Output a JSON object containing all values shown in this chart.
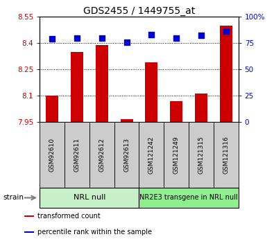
{
  "title": "GDS2455 / 1449755_at",
  "samples": [
    "GSM92610",
    "GSM92611",
    "GSM92612",
    "GSM92613",
    "GSM121242",
    "GSM121249",
    "GSM121315",
    "GSM121316"
  ],
  "transformed_count": [
    8.1,
    8.35,
    8.39,
    7.965,
    8.29,
    8.07,
    8.11,
    8.5
  ],
  "percentile_rank": [
    79,
    80,
    80,
    76,
    83,
    80,
    82,
    86
  ],
  "ylim_left": [
    7.95,
    8.55
  ],
  "ylim_right": [
    0,
    100
  ],
  "yticks_left": [
    7.95,
    8.1,
    8.25,
    8.4,
    8.55
  ],
  "yticks_right": [
    0,
    25,
    50,
    75,
    100
  ],
  "ytick_labels_left": [
    "7.95",
    "8.1",
    "8.25",
    "8.4",
    "8.55"
  ],
  "ytick_labels_right": [
    "0",
    "25",
    "50",
    "75",
    "100%"
  ],
  "groups": [
    {
      "label": "NRL null",
      "indices": [
        0,
        1,
        2,
        3
      ],
      "color": "#c8f0c8"
    },
    {
      "label": "NR2E3 transgene in NRL null",
      "indices": [
        4,
        5,
        6,
        7
      ],
      "color": "#90ee90"
    }
  ],
  "bar_color": "#cc0000",
  "dot_color": "#0000cc",
  "bar_width": 0.5,
  "dot_size": 40,
  "tick_label_color_left": "#cc0000",
  "tick_label_color_right": "#0000cc",
  "legend_entries": [
    {
      "label": "transformed count",
      "color": "#cc0000"
    },
    {
      "label": "percentile rank within the sample",
      "color": "#0000cc"
    }
  ],
  "bar_bottom": 7.95,
  "sample_box_color": "#cccccc"
}
